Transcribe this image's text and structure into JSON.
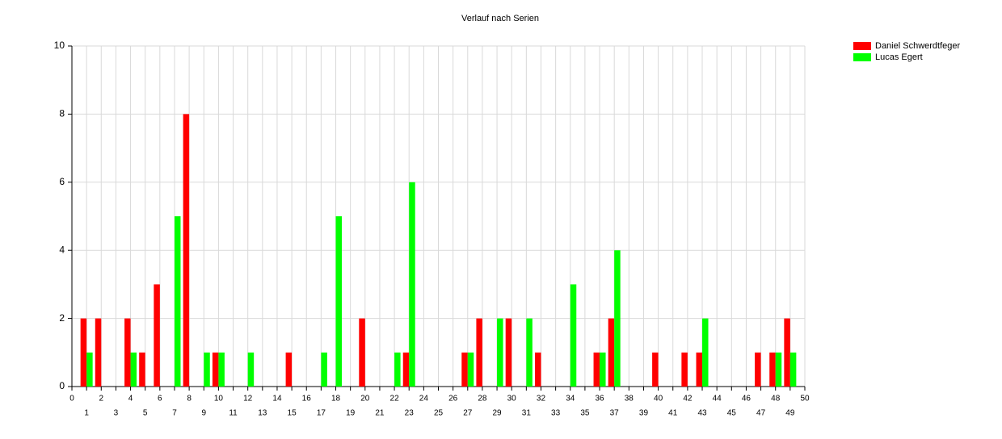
{
  "chart_data": {
    "type": "bar",
    "title": "Verlauf nach Serien",
    "x": [
      1,
      2,
      3,
      4,
      5,
      6,
      7,
      8,
      9,
      10,
      11,
      12,
      13,
      14,
      15,
      16,
      17,
      18,
      19,
      20,
      21,
      22,
      23,
      24,
      25,
      26,
      27,
      28,
      29,
      30,
      31,
      32,
      33,
      34,
      35,
      36,
      37,
      38,
      39,
      40,
      41,
      42,
      43,
      44,
      45,
      46,
      47,
      48,
      49
    ],
    "series": [
      {
        "name": "Daniel Schwerdtfeger",
        "color": "#ff0000",
        "values": [
          2,
          2,
          0,
          2,
          1,
          3,
          0,
          8,
          0,
          1,
          0,
          0,
          0,
          0,
          1,
          0,
          0,
          0,
          0,
          2,
          0,
          0,
          1,
          0,
          0,
          0,
          1,
          2,
          0,
          2,
          0,
          1,
          0,
          0,
          0,
          1,
          2,
          0,
          0,
          1,
          0,
          1,
          1,
          0,
          0,
          0,
          1,
          1,
          2
        ]
      },
      {
        "name": "Lucas Egert",
        "color": "#00ff00",
        "values": [
          1,
          0,
          0,
          1,
          0,
          0,
          5,
          0,
          1,
          1,
          0,
          1,
          0,
          0,
          0,
          0,
          1,
          5,
          0,
          0,
          0,
          1,
          6,
          0,
          0,
          0,
          1,
          0,
          2,
          0,
          2,
          0,
          0,
          3,
          0,
          1,
          4,
          0,
          0,
          0,
          0,
          0,
          2,
          0,
          0,
          0,
          0,
          1,
          1
        ]
      }
    ],
    "xlim": [
      0,
      50
    ],
    "xticks": [
      0,
      1,
      2,
      3,
      4,
      5,
      6,
      7,
      8,
      9,
      10,
      11,
      12,
      13,
      14,
      15,
      16,
      17,
      18,
      19,
      20,
      21,
      22,
      23,
      24,
      25,
      26,
      27,
      28,
      29,
      30,
      31,
      32,
      33,
      34,
      35,
      36,
      37,
      38,
      39,
      40,
      41,
      42,
      43,
      44,
      45,
      46,
      47,
      48,
      49,
      50
    ],
    "ylim": [
      0,
      10
    ],
    "yticks": [
      0,
      2,
      4,
      6,
      8,
      10
    ],
    "grid": true,
    "legend": "top-right"
  }
}
